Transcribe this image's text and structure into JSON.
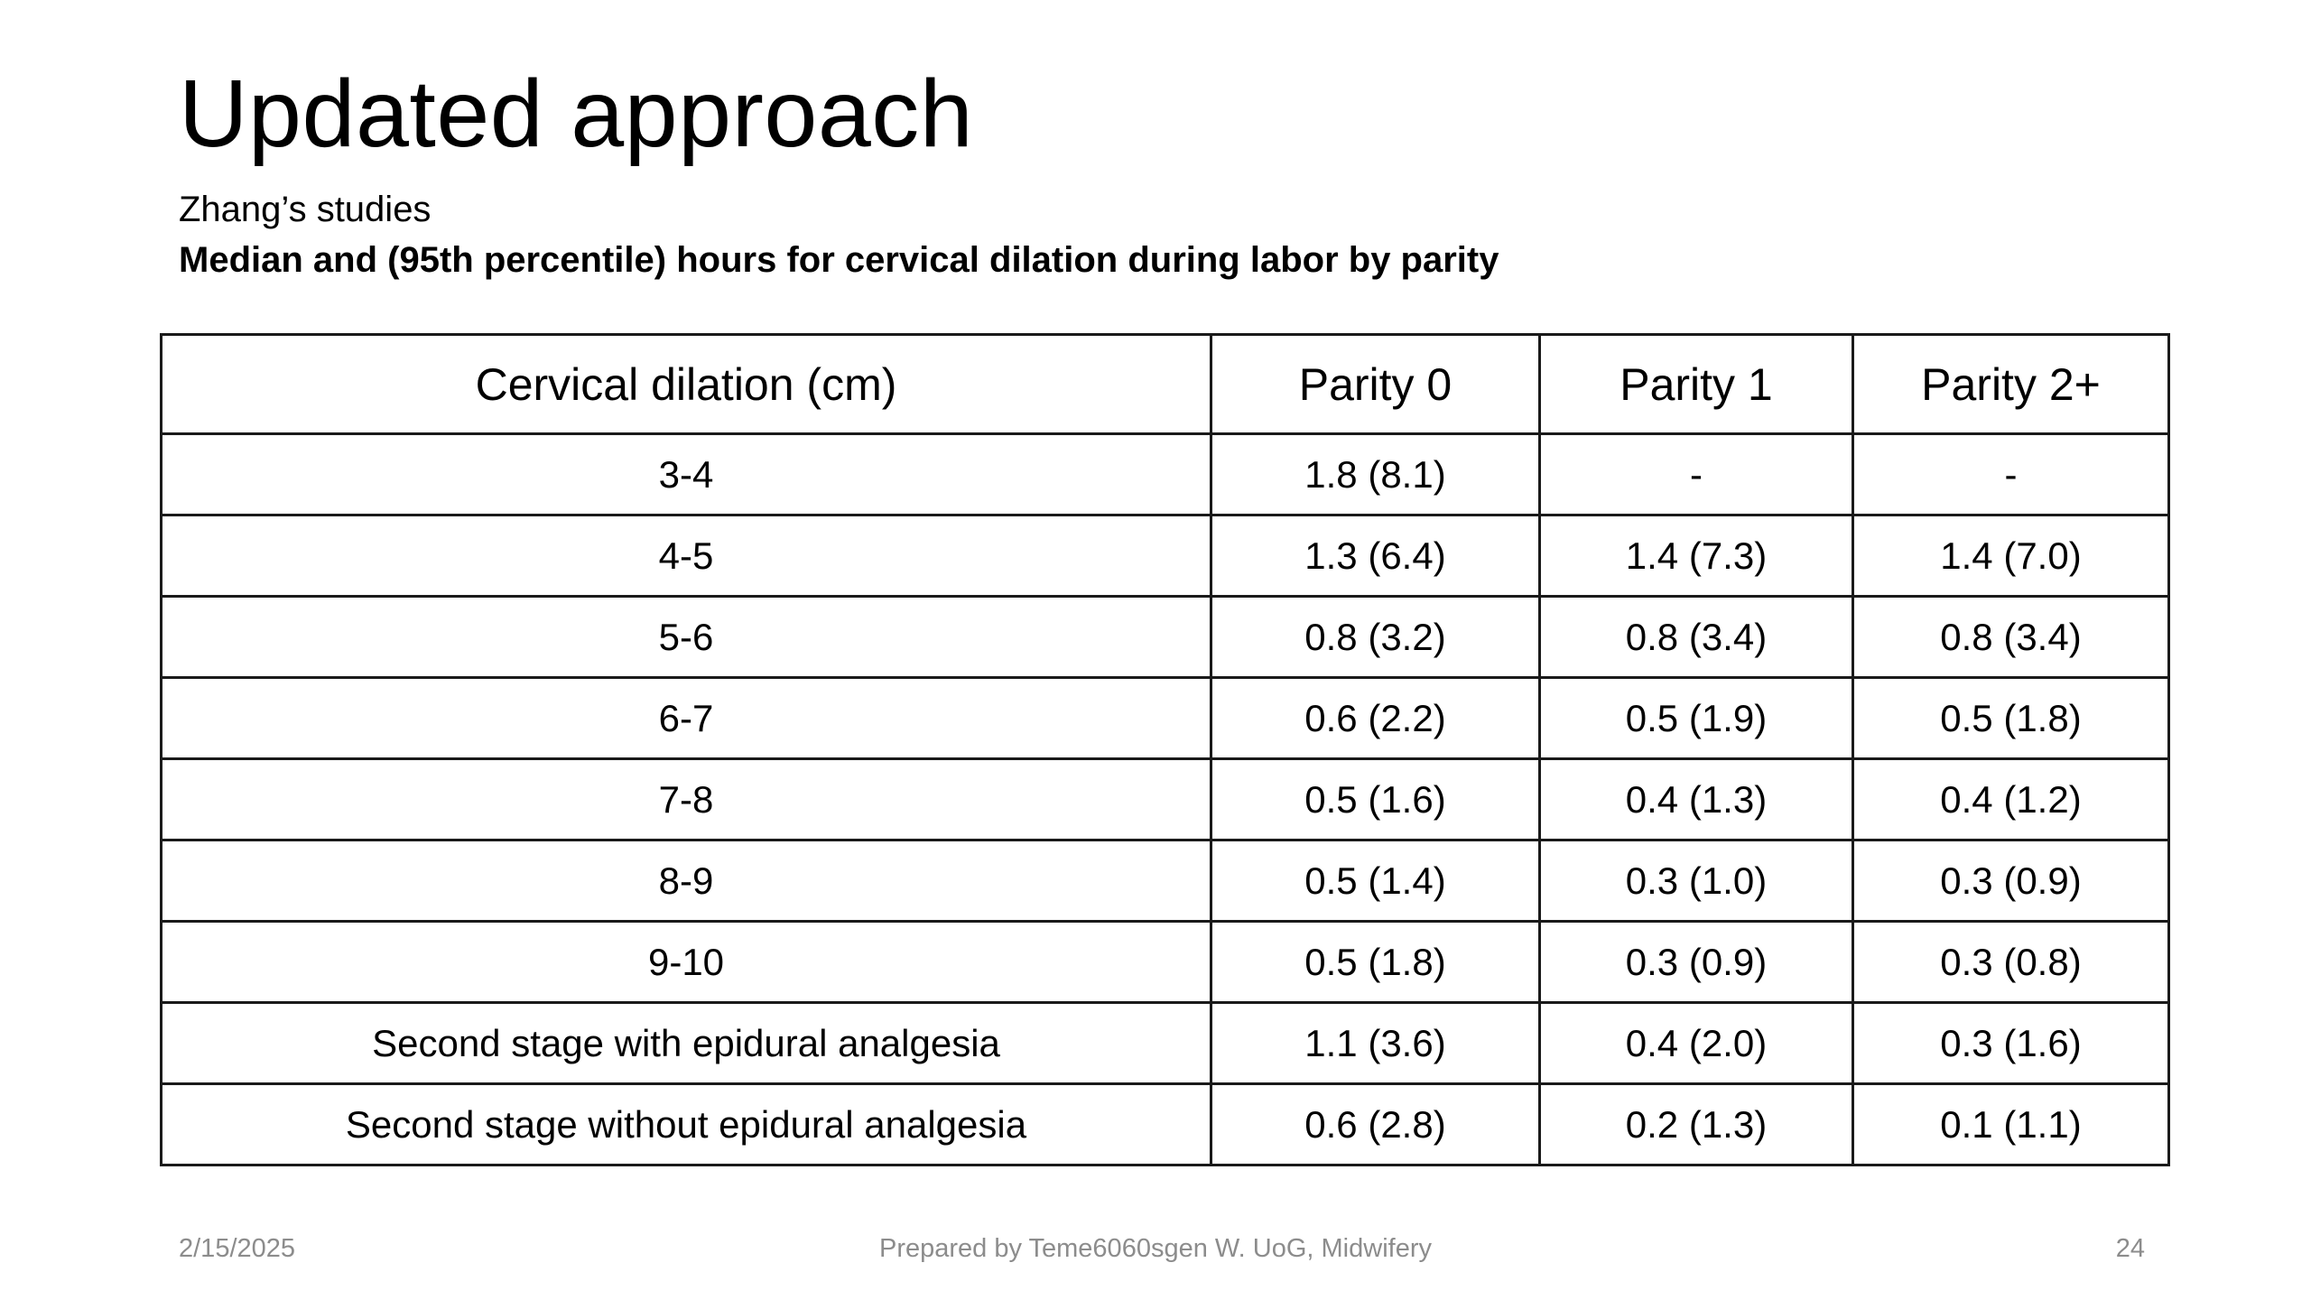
{
  "slide": {
    "title": "Updated approach",
    "subtitle": "Zhang’s studies",
    "caption": "Median and (95th percentile) hours for cervical dilation during labor by parity"
  },
  "table": {
    "headers": [
      "Cervical dilation (cm)",
      "Parity 0",
      "Parity 1",
      "Parity 2+"
    ],
    "rows": [
      [
        "3-4",
        "1.8 (8.1)",
        "-",
        "-"
      ],
      [
        "4-5",
        "1.3 (6.4)",
        "1.4 (7.3)",
        "1.4 (7.0)"
      ],
      [
        "5-6",
        "0.8 (3.2)",
        "0.8 (3.4)",
        "0.8 (3.4)"
      ],
      [
        "6-7",
        "0.6 (2.2)",
        "0.5 (1.9)",
        "0.5 (1.8)"
      ],
      [
        "7-8",
        "0.5 (1.6)",
        "0.4 (1.3)",
        "0.4 (1.2)"
      ],
      [
        "8-9",
        "0.5 (1.4)",
        "0.3 (1.0)",
        "0.3 (0.9)"
      ],
      [
        "9-10",
        "0.5 (1.8)",
        "0.3 (0.9)",
        "0.3 (0.8)"
      ],
      [
        "Second stage with epidural analgesia",
        "1.1 (3.6)",
        "0.4 (2.0)",
        "0.3 (1.6)"
      ],
      [
        "Second stage without epidural analgesia",
        "0.6 (2.8)",
        "0.2 (1.3)",
        "0.1 (1.1)"
      ]
    ]
  },
  "footer": {
    "date": "2/15/2025",
    "author": "Prepared by Teme6060sgen W. UoG, Midwifery",
    "page_number": "24"
  }
}
